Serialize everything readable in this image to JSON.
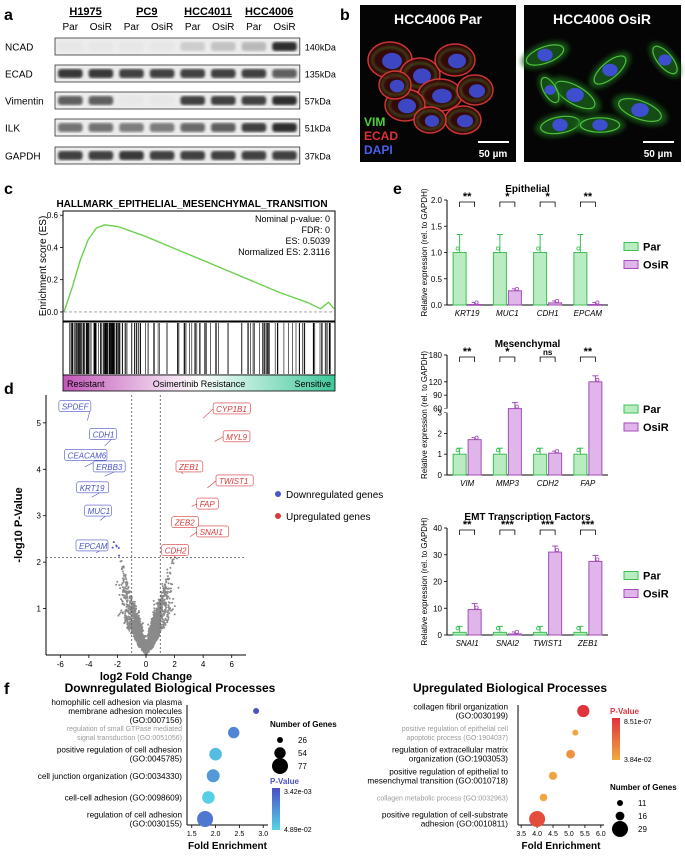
{
  "panel_labels": [
    "a",
    "b",
    "c",
    "d",
    "e",
    "f"
  ],
  "panel_a": {
    "cell_lines": [
      "H1975",
      "PC9",
      "HCC4011",
      "HCC4006"
    ],
    "conditions": [
      "Par",
      "OsiR",
      "Par",
      "OsiR",
      "Par",
      "OsiR",
      "Par",
      "OsiR"
    ],
    "rows": [
      {
        "protein": "NCAD",
        "kda": "140kDa",
        "intensity": [
          0.02,
          0.02,
          0.02,
          0.02,
          0.15,
          0.2,
          0.25,
          0.95
        ]
      },
      {
        "protein": "ECAD",
        "kda": "135kDa",
        "intensity": [
          0.9,
          0.9,
          0.85,
          0.85,
          0.85,
          0.85,
          0.85,
          0.7
        ]
      },
      {
        "protein": "Vimentin",
        "kda": "57kDa",
        "intensity": [
          0.7,
          0.7,
          0.02,
          0.02,
          0.85,
          0.85,
          0.85,
          0.95
        ]
      },
      {
        "protein": "ILK",
        "kda": "51kDa",
        "intensity": [
          0.6,
          0.6,
          0.55,
          0.55,
          0.65,
          0.7,
          0.85,
          0.95
        ]
      },
      {
        "protein": "GAPDH",
        "kda": "37kDa",
        "intensity": [
          0.85,
          0.85,
          0.9,
          0.85,
          0.85,
          0.85,
          0.85,
          0.85
        ]
      }
    ]
  },
  "panel_b": {
    "images": [
      {
        "title": "HCC4006 Par",
        "scale": "50 µm"
      },
      {
        "title": "HCC4006 OsiR",
        "scale": "50 µm"
      }
    ],
    "channels": [
      {
        "label": "VIM",
        "color": "#4fd23a"
      },
      {
        "label": "ECAD",
        "color": "#e03030"
      },
      {
        "label": "DAPI",
        "color": "#4a5ff0"
      }
    ]
  },
  "panel_c": {
    "title": "HALLMARK_EPITHELIAL_MESENCHYMAL_TRANSITION",
    "ylabel": "Enrichment score (ES)",
    "yticks": [
      "0.6",
      "0.4",
      "0.2",
      "0.0"
    ],
    "stats": [
      "Nominal p-value: 0",
      "FDR: 0",
      "ES: 0.5039",
      "Normalized ES: 2.3116"
    ],
    "bar_labels": {
      "left": "Resistant",
      "center": "Osimertinib Resistance",
      "right": "Sensitive"
    },
    "curve": [
      [
        0,
        0
      ],
      [
        0.03,
        0.15
      ],
      [
        0.06,
        0.32
      ],
      [
        0.09,
        0.45
      ],
      [
        0.12,
        0.52
      ],
      [
        0.15,
        0.54
      ],
      [
        0.2,
        0.53
      ],
      [
        0.3,
        0.47
      ],
      [
        0.4,
        0.4
      ],
      [
        0.5,
        0.33
      ],
      [
        0.6,
        0.26
      ],
      [
        0.7,
        0.19
      ],
      [
        0.8,
        0.12
      ],
      [
        0.9,
        0.06
      ],
      [
        0.95,
        0.02
      ],
      [
        0.98,
        0.06
      ],
      [
        1.0,
        0.02
      ]
    ]
  },
  "panel_d": {
    "xlabel": "log2 Fold Change",
    "ylabel": "-log10 P-Value",
    "xticks": [
      "-6",
      "-4",
      "-2",
      "0",
      "2",
      "4",
      "6"
    ],
    "yticks": [
      "1",
      "2",
      "3",
      "4",
      "5"
    ],
    "legend": [
      {
        "label": "Downregulated genes",
        "color": "#4a55c8"
      },
      {
        "label": "Upregulated genes",
        "color": "#d63a3a"
      }
    ],
    "down_genes": [
      "SPDEF",
      "CDH1",
      "CEACAM6",
      "ERBB3",
      "KRT19",
      "MUC1",
      "EPCAM"
    ],
    "up_genes": [
      "CYP1B1",
      "MYL9",
      "ZEB1",
      "TWIST1",
      "FAP",
      "ZEB2",
      "SNAI1",
      "CDH2"
    ]
  },
  "panel_e": {
    "ylabel": "Relative expression (rel. to GAPDH)",
    "legend": [
      "Par",
      "OsiR"
    ],
    "colors": {
      "par": "#b9ecc0",
      "par_edge": "#3cbf55",
      "osir": "#e0b6ea",
      "osir_edge": "#a54cb8"
    },
    "charts": [
      {
        "title": "Epithelial",
        "genes": [
          "KRT19",
          "MUC1",
          "CDH1",
          "EPCAM"
        ],
        "par": [
          1.0,
          1.0,
          1.0,
          1.0
        ],
        "osir": [
          0.01,
          0.27,
          0.04,
          0.01
        ],
        "sig": [
          "**",
          "*",
          "*",
          "**"
        ],
        "yticks": [
          "0.0",
          "0.5",
          "1.0",
          "1.5",
          "2.0"
        ],
        "ymax": 2.0
      },
      {
        "title": "Mesenchymal",
        "genes": [
          "VIM",
          "MMP3",
          "CDH2",
          "FAP"
        ],
        "par": [
          1.0,
          1.0,
          1.0,
          1.0
        ],
        "osir": [
          1.7,
          60,
          1.05,
          120
        ],
        "sig": [
          "**",
          "*",
          "ns",
          "**"
        ],
        "yticks": [
          "0",
          "1",
          "2",
          "3",
          "60",
          "90",
          "120",
          "180"
        ]
      },
      {
        "title": "EMT Transcription Factors",
        "genes": [
          "SNAI1",
          "SNAI2",
          "TWIST1",
          "ZEB1"
        ],
        "par": [
          1.0,
          1.0,
          1.0,
          1.0
        ],
        "osir": [
          9.5,
          0.4,
          31,
          27.5
        ],
        "sig": [
          "**",
          "***",
          "***",
          "***"
        ],
        "yticks": [
          "0",
          "10",
          "20",
          "30",
          "40"
        ],
        "ymax": 40
      }
    ]
  },
  "panel_f": {
    "down": {
      "title": "Downregulated Biological Processes",
      "xlabel": "Fold Enrichment",
      "xticks": [
        "1.5",
        "2.0",
        "2.5",
        "3.0"
      ],
      "terms": [
        {
          "lines": [
            "homophilic cell adhesion via plasma",
            "membrane adhesion molecules",
            "(GO:0007156)"
          ],
          "fe": 2.85,
          "genes": 26,
          "p": 0.00342,
          "gray": false
        },
        {
          "lines": [
            "regulation of small GTPase mediated",
            "signal transduction (GO:0051056)"
          ],
          "fe": 2.38,
          "genes": 54,
          "p": 0.01,
          "gray": true
        },
        {
          "lines": [
            "positive regulation of cell adhesion",
            "(GO:0045785)"
          ],
          "fe": 2.0,
          "genes": 60,
          "p": 0.03,
          "gray": false
        },
        {
          "lines": [
            "cell junction organization (GO:0034330)"
          ],
          "fe": 1.95,
          "genes": 62,
          "p": 0.015,
          "gray": false
        },
        {
          "lines": [
            "cell-cell adhesion (GO:0098609)"
          ],
          "fe": 1.85,
          "genes": 60,
          "p": 0.045,
          "gray": false
        },
        {
          "lines": [
            "regulation of cell adhesion",
            "(GO:0030155)"
          ],
          "fe": 1.78,
          "genes": 77,
          "p": 0.008,
          "gray": false
        }
      ],
      "size_legend": {
        "title": "Number of Genes",
        "values": [
          "26",
          "54",
          "77"
        ]
      },
      "color_legend": {
        "title": "P-Value",
        "top": "3.42e-03",
        "bottom": "4.89e-02"
      }
    },
    "up": {
      "title": "Upregulated Biological Processes",
      "xlabel": "Fold Enrichment",
      "xticks": [
        "3.5",
        "4.0",
        "4.5",
        "5.0",
        "5.5",
        "6.0"
      ],
      "terms": [
        {
          "lines": [
            "collagen fibril organization",
            "(GO:0030199)"
          ],
          "fe": 5.45,
          "genes": 22,
          "p": 9e-07,
          "gray": false
        },
        {
          "lines": [
            "positive regulation of epithelial cell",
            "apoptotic process (GO:1904037)"
          ],
          "fe": 5.2,
          "genes": 11,
          "p": 0.03,
          "gray": true
        },
        {
          "lines": [
            "regulation of extracellular matrix",
            "organization (GO:1903053)"
          ],
          "fe": 5.05,
          "genes": 16,
          "p": 0.005,
          "gray": false
        },
        {
          "lines": [
            "positive regulation of epithelial to",
            "mesenchymal transition (GO:0010718)"
          ],
          "fe": 4.5,
          "genes": 15,
          "p": 0.02,
          "gray": false
        },
        {
          "lines": [
            "collagen metabolic process (GO:0032963)"
          ],
          "fe": 4.2,
          "genes": 14,
          "p": 0.03,
          "gray": true
        },
        {
          "lines": [
            "positive regulation of cell-substrate",
            "adhesion (GO:0010811)"
          ],
          "fe": 4.0,
          "genes": 29,
          "p": 1e-05,
          "gray": false
        }
      ],
      "size_legend": {
        "title": "Number of Genes",
        "values": [
          "11",
          "16",
          "29"
        ]
      },
      "color_legend": {
        "title": "P-Value",
        "top": "8.51e-07",
        "bottom": "3.84e-02"
      }
    }
  }
}
